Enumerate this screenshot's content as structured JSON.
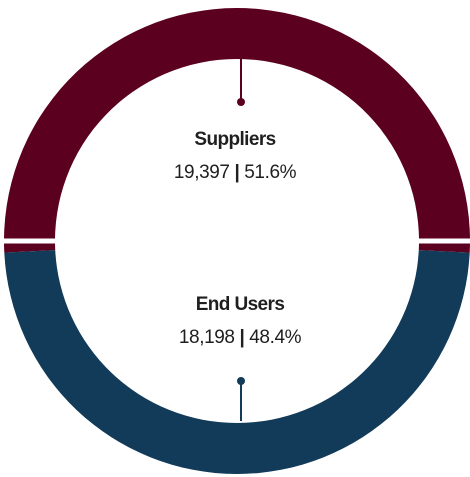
{
  "chart_data": {
    "type": "pie",
    "variant": "donut",
    "categories": [
      "Suppliers",
      "End Users"
    ],
    "values": [
      19397,
      18198
    ],
    "percents": [
      "51.6%",
      "48.4%"
    ],
    "value_labels": [
      "19,397",
      "18,198"
    ],
    "colors": [
      "#5c0020",
      "#123a59"
    ],
    "legend": "none",
    "slices": [
      {
        "label": "Suppliers",
        "value_text": "19,397",
        "percent_text": "51.6%",
        "color": "#5c0020"
      },
      {
        "label": "End Users",
        "value_text": "18,198",
        "percent_text": "48.4%",
        "color": "#123a59"
      }
    ]
  }
}
